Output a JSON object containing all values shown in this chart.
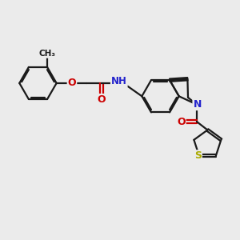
{
  "bg_color": "#ebebeb",
  "bond_color": "#1a1a1a",
  "bond_width": 1.6,
  "N_color": "#2222cc",
  "O_color": "#cc0000",
  "S_color": "#aaaa00",
  "H_color": "#6699aa",
  "figsize": [
    3.0,
    3.0
  ],
  "dpi": 100,
  "xlim": [
    0,
    10
  ],
  "ylim": [
    0,
    10
  ]
}
